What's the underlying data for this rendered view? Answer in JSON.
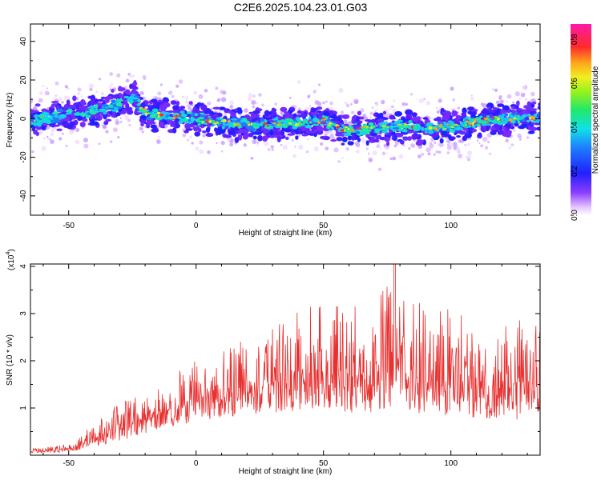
{
  "title": "C2E6.2025.104.23.01.G03",
  "colors": {
    "snr_line": "#e8302f",
    "axis": "#000000",
    "background": "#ffffff"
  },
  "chart_data": [
    {
      "type": "heatmap",
      "title": "",
      "xlabel": "Height of straight line (km)",
      "ylabel": "Frequency (Hz)",
      "xlim": [
        -65,
        135
      ],
      "ylim": [
        -50,
        49
      ],
      "x_ticks": [
        -50,
        0,
        50,
        100
      ],
      "x_tick_labels": [
        "-50",
        "0",
        "50",
        "100"
      ],
      "y_ticks": [
        -40,
        -20,
        0,
        20,
        40
      ],
      "y_tick_labels": [
        "-40",
        "-20",
        "0",
        "20",
        "40"
      ],
      "grid": false,
      "ridge": {
        "description_points_x": [
          -65,
          -60,
          -50,
          -40,
          -35,
          -30,
          -27,
          -24,
          -22,
          -18,
          -10,
          0,
          10,
          20,
          30,
          40,
          50,
          55,
          60,
          70,
          80,
          90,
          100,
          110,
          120,
          130,
          135
        ],
        "center_freq_hz": [
          -1,
          0,
          2,
          4,
          5,
          8,
          10,
          12,
          5,
          2,
          1,
          0,
          -2,
          -3,
          -3,
          -2,
          -1,
          -4,
          -6,
          -5,
          -4,
          -5,
          -4,
          -2,
          0,
          1,
          0
        ]
      },
      "colorbar": {
        "label": "Normalized spectral amplitude",
        "range": [
          0,
          0.87
        ],
        "ticks": [
          0.0,
          0.2,
          0.4,
          0.6,
          0.8
        ],
        "tick_labels": [
          "0.0",
          "0.2",
          "0.4",
          "0.6",
          "0.8"
        ],
        "colormap": "rainbow (white-purple-blue-cyan-green-yellow-red-magenta)"
      }
    },
    {
      "type": "line",
      "title": "",
      "xlabel": "Height of straight line (km)",
      "ylabel": "SNR (10 * v/v)",
      "multiplier_label": "(x10",
      "multiplier_exponent": "4",
      "xlim": [
        -65,
        135
      ],
      "ylim": [
        0,
        4.05
      ],
      "x_ticks": [
        -50,
        0,
        50,
        100
      ],
      "x_tick_labels": [
        "-50",
        "0",
        "50",
        "100"
      ],
      "y_ticks": [
        1,
        2,
        3,
        4
      ],
      "y_tick_labels": [
        "1",
        "2",
        "3",
        "4"
      ],
      "grid": false,
      "series": [
        {
          "name": "SNR",
          "envelope_x": [
            -65,
            -55,
            -50,
            -45,
            -40,
            -30,
            -20,
            -10,
            0,
            10,
            20,
            30,
            40,
            50,
            60,
            70,
            78,
            80,
            90,
            100,
            110,
            120,
            130,
            135
          ],
          "envelope_peak": [
            0.2,
            0.2,
            0.25,
            0.4,
            0.75,
            1.1,
            1.4,
            1.7,
            2.0,
            2.3,
            2.5,
            2.8,
            3.1,
            3.2,
            3.2,
            3.2,
            4.1,
            3.3,
            3.3,
            3.1,
            3.0,
            2.9,
            3.0,
            2.8
          ],
          "baseline": [
            0.05,
            0.05,
            0.08,
            0.12,
            0.18,
            0.3,
            0.45,
            0.6,
            0.7,
            0.8,
            0.85,
            0.9,
            0.95,
            0.95,
            0.9,
            0.9,
            0.9,
            0.85,
            0.85,
            0.8,
            0.8,
            0.75,
            0.7,
            0.7
          ]
        }
      ]
    }
  ]
}
